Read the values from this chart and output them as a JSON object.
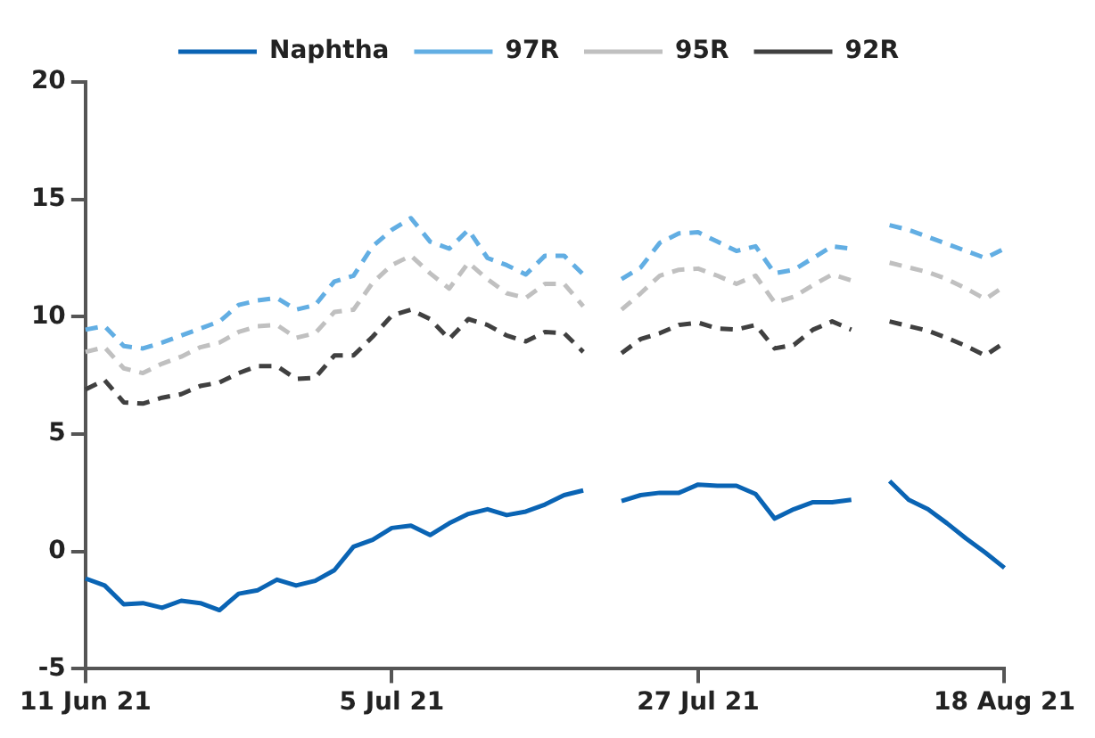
{
  "chart_data": {
    "type": "line",
    "categories": [
      "11 Jun 21",
      null,
      null,
      null,
      null,
      null,
      null,
      null,
      null,
      null,
      null,
      null,
      null,
      null,
      null,
      null,
      "5 Jul 21",
      null,
      null,
      null,
      null,
      null,
      null,
      null,
      null,
      null,
      null,
      null,
      null,
      null,
      null,
      null,
      "27 Jul 21",
      null,
      null,
      null,
      null,
      null,
      null,
      null,
      null,
      null,
      null,
      null,
      null,
      null,
      null,
      null,
      "18 Aug 21"
    ],
    "series": [
      {
        "name": "Naphtha",
        "color": "#0a64b4",
        "line_style": "solid",
        "values": [
          -1.15,
          -1.45,
          -2.25,
          -2.2,
          -2.4,
          -2.1,
          -2.2,
          -2.5,
          -1.8,
          -1.65,
          -1.2,
          -1.45,
          -1.25,
          -0.8,
          0.2,
          0.5,
          1.0,
          1.1,
          0.7,
          1.2,
          1.6,
          1.8,
          1.55,
          1.7,
          2.0,
          2.4,
          2.6,
          null,
          2.15,
          2.4,
          2.5,
          2.5,
          2.85,
          2.8,
          2.8,
          2.45,
          1.4,
          1.8,
          2.1,
          2.1,
          2.2,
          null,
          3.0,
          2.2,
          1.8,
          1.2,
          0.55,
          -0.05,
          -0.7
        ]
      },
      {
        "name": "97R",
        "color": "#62aee3",
        "line_style": "dashed",
        "values": [
          9.45,
          9.6,
          8.75,
          8.65,
          8.9,
          9.2,
          9.5,
          9.8,
          10.5,
          10.7,
          10.8,
          10.3,
          10.5,
          11.5,
          11.75,
          13.0,
          13.7,
          14.2,
          13.2,
          12.9,
          13.7,
          12.5,
          12.2,
          11.8,
          12.6,
          12.6,
          11.8,
          null,
          11.6,
          12.1,
          13.15,
          13.55,
          13.6,
          13.2,
          12.8,
          13.0,
          11.85,
          12.0,
          12.5,
          13.0,
          12.9,
          null,
          13.9,
          13.7,
          13.4,
          13.1,
          12.8,
          12.5,
          12.9
        ]
      },
      {
        "name": "95R",
        "color": "#c0c0c0",
        "line_style": "dashed",
        "values": [
          8.5,
          8.7,
          7.8,
          7.6,
          8.0,
          8.3,
          8.7,
          8.9,
          9.35,
          9.6,
          9.65,
          9.1,
          9.3,
          10.2,
          10.3,
          11.45,
          12.2,
          12.6,
          11.85,
          11.2,
          12.3,
          11.6,
          11.0,
          10.8,
          11.4,
          11.4,
          10.45,
          null,
          10.3,
          11.0,
          11.75,
          12.0,
          12.05,
          11.75,
          11.4,
          11.75,
          10.6,
          10.85,
          11.35,
          11.8,
          11.55,
          null,
          12.3,
          12.1,
          11.9,
          11.6,
          11.2,
          10.75,
          11.3
        ]
      },
      {
        "name": "92R",
        "color": "#404040",
        "line_style": "dashed",
        "values": [
          6.9,
          7.3,
          6.35,
          6.3,
          6.55,
          6.7,
          7.05,
          7.2,
          7.6,
          7.9,
          7.9,
          7.35,
          7.4,
          8.35,
          8.35,
          9.15,
          10.05,
          10.3,
          9.9,
          9.05,
          9.9,
          9.65,
          9.2,
          8.95,
          9.35,
          9.3,
          8.5,
          null,
          8.45,
          9.05,
          9.3,
          9.65,
          9.75,
          9.5,
          9.45,
          9.65,
          8.65,
          8.8,
          9.45,
          9.8,
          9.45,
          null,
          9.8,
          9.6,
          9.4,
          9.1,
          8.75,
          8.35,
          8.9
        ]
      }
    ],
    "ylim": [
      -5,
      20
    ],
    "yticks": [
      -5,
      0,
      5,
      10,
      15,
      20
    ],
    "grid": false,
    "legend": "top",
    "marker": "none"
  }
}
